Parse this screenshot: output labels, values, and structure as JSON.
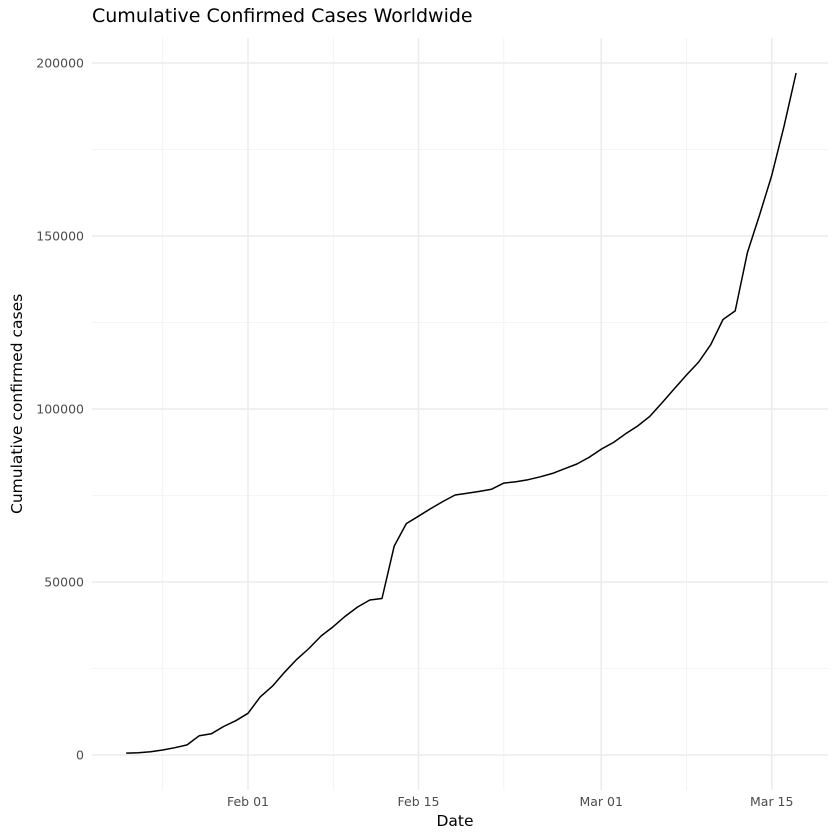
{
  "chart_data": {
    "type": "line",
    "title": "Cumulative Confirmed Cases Worldwide",
    "xlabel": "Date",
    "ylabel": "Cumulative confirmed cases",
    "x_tick_labels": [
      "Feb 01",
      "Feb 15",
      "Mar 01",
      "Mar 15"
    ],
    "y_tick_labels": [
      "0",
      "50000",
      "100000",
      "150000",
      "200000"
    ],
    "ylim": [
      0,
      200000
    ],
    "grid": true,
    "legend": "none",
    "line_color": "#000000",
    "x": [
      "2020-01-22",
      "2020-01-23",
      "2020-01-24",
      "2020-01-25",
      "2020-01-26",
      "2020-01-27",
      "2020-01-28",
      "2020-01-29",
      "2020-01-30",
      "2020-01-31",
      "2020-02-01",
      "2020-02-02",
      "2020-02-03",
      "2020-02-04",
      "2020-02-05",
      "2020-02-06",
      "2020-02-07",
      "2020-02-08",
      "2020-02-09",
      "2020-02-10",
      "2020-02-11",
      "2020-02-12",
      "2020-02-13",
      "2020-02-14",
      "2020-02-15",
      "2020-02-16",
      "2020-02-17",
      "2020-02-18",
      "2020-02-19",
      "2020-02-20",
      "2020-02-21",
      "2020-02-22",
      "2020-02-23",
      "2020-02-24",
      "2020-02-25",
      "2020-02-26",
      "2020-02-27",
      "2020-02-28",
      "2020-02-29",
      "2020-03-01",
      "2020-03-02",
      "2020-03-03",
      "2020-03-04",
      "2020-03-05",
      "2020-03-06",
      "2020-03-07",
      "2020-03-08",
      "2020-03-09",
      "2020-03-10",
      "2020-03-11",
      "2020-03-12",
      "2020-03-13",
      "2020-03-14",
      "2020-03-15",
      "2020-03-16",
      "2020-03-17"
    ],
    "values": [
      555,
      653,
      941,
      1434,
      2118,
      2927,
      5578,
      6166,
      8234,
      9927,
      12038,
      16787,
      19881,
      23892,
      27635,
      30794,
      34391,
      37120,
      40150,
      42762,
      44802,
      45221,
      60368,
      66885,
      69030,
      71224,
      73258,
      75136,
      75639,
      76197,
      76819,
      78572,
      78958,
      79561,
      80406,
      81388,
      82746,
      84112,
      86011,
      88369,
      90306,
      92840,
      95120,
      97886,
      101801,
      105847,
      109821,
      113590,
      118620,
      125875,
      128352,
      145205,
      156101,
      167454,
      181574,
      197102
    ]
  }
}
